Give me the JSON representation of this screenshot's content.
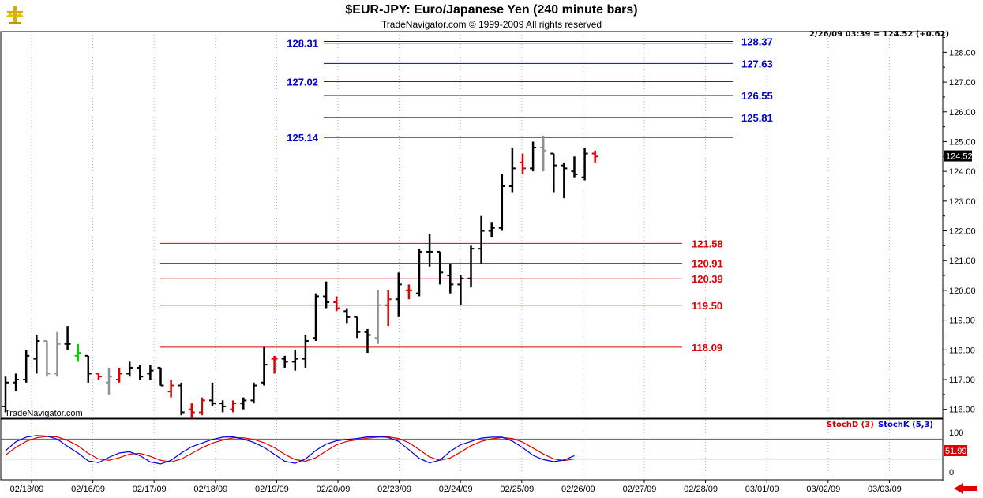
{
  "header": {
    "title": "$EUR-JPY:  Euro/Japanese Yen  (240 minute bars)",
    "subtitle": "TradeNavigator.com © 1999-2009 All rights reserved",
    "status": "2/26/09 03:39 = 124.52 (+0.62)",
    "watermark": "TradeNavigator.com"
  },
  "indicator": {
    "stoch_d_label": "StochD (3)",
    "stoch_k_label": "StochK (5,3)",
    "stoch_d_color": "#e00000",
    "stoch_k_color": "#0000e0",
    "last_value": "51.99",
    "ticks": [
      "100",
      "0"
    ]
  },
  "colors": {
    "up": "#000000",
    "down": "#e00000",
    "neutral": "#909090",
    "highlight": "#00cc00",
    "blue_levels": "#0000cc",
    "red_levels": "#e00000"
  },
  "chart_data": {
    "type": "ohlc",
    "last_price": "124.52",
    "ylim": [
      115.7,
      128.7
    ],
    "y_ticks": [
      "116.00",
      "117.00",
      "118.00",
      "119.00",
      "120.00",
      "121.00",
      "122.00",
      "123.00",
      "124.00",
      "125.00",
      "126.00",
      "127.00",
      "128.00"
    ],
    "x_ticks": [
      "02/13/09",
      "02/16/09",
      "02/17/09",
      "02/18/09",
      "02/19/09",
      "02/20/09",
      "02/23/09",
      "02/24/09",
      "02/25/09",
      "02/26/09",
      "02/27/09",
      "02/28/09",
      "03/01/09",
      "03/02/09",
      "03/03/09"
    ],
    "bars": [
      {
        "o": 116.1,
        "h": 117.1,
        "l": 115.9,
        "c": 116.9,
        "k": "up"
      },
      {
        "o": 116.9,
        "h": 117.2,
        "l": 116.6,
        "c": 117.0,
        "k": "up"
      },
      {
        "o": 117.0,
        "h": 118.0,
        "l": 116.9,
        "c": 117.8,
        "k": "up"
      },
      {
        "o": 117.7,
        "h": 118.5,
        "l": 117.2,
        "c": 118.3,
        "k": "up"
      },
      {
        "o": 118.3,
        "h": 118.3,
        "l": 117.1,
        "c": 117.2,
        "k": "neutral"
      },
      {
        "o": 117.2,
        "h": 118.6,
        "l": 117.1,
        "c": 118.2,
        "k": "neutral"
      },
      {
        "o": 118.2,
        "h": 118.8,
        "l": 118.0,
        "c": 118.2,
        "k": "up"
      },
      {
        "o": 117.8,
        "h": 118.2,
        "l": 117.6,
        "c": 117.9,
        "k": "highlight"
      },
      {
        "o": 117.8,
        "h": 117.8,
        "l": 116.9,
        "c": 117.2,
        "k": "up"
      },
      {
        "o": 117.2,
        "h": 117.2,
        "l": 117.0,
        "c": 117.1,
        "k": "down"
      },
      {
        "o": 116.9,
        "h": 117.4,
        "l": 116.5,
        "c": 117.1,
        "k": "neutral"
      },
      {
        "o": 117.0,
        "h": 117.4,
        "l": 116.9,
        "c": 117.2,
        "k": "down"
      },
      {
        "o": 117.2,
        "h": 117.6,
        "l": 117.1,
        "c": 117.4,
        "k": "up"
      },
      {
        "o": 117.4,
        "h": 117.5,
        "l": 117.0,
        "c": 117.1,
        "k": "up"
      },
      {
        "o": 117.2,
        "h": 117.5,
        "l": 117.0,
        "c": 117.3,
        "k": "up"
      },
      {
        "o": 117.4,
        "h": 117.4,
        "l": 116.8,
        "c": 116.8,
        "k": "up"
      },
      {
        "o": 116.6,
        "h": 117.0,
        "l": 116.4,
        "c": 116.8,
        "k": "down"
      },
      {
        "o": 116.8,
        "h": 116.9,
        "l": 115.8,
        "c": 115.9,
        "k": "up"
      },
      {
        "o": 116.0,
        "h": 116.2,
        "l": 115.7,
        "c": 115.9,
        "k": "down"
      },
      {
        "o": 115.9,
        "h": 116.4,
        "l": 115.8,
        "c": 116.3,
        "k": "down"
      },
      {
        "o": 116.3,
        "h": 116.9,
        "l": 116.1,
        "c": 116.2,
        "k": "up"
      },
      {
        "o": 116.2,
        "h": 116.3,
        "l": 115.9,
        "c": 116.1,
        "k": "up"
      },
      {
        "o": 116.0,
        "h": 116.3,
        "l": 115.9,
        "c": 116.2,
        "k": "down"
      },
      {
        "o": 116.2,
        "h": 116.4,
        "l": 116.0,
        "c": 116.3,
        "k": "up"
      },
      {
        "o": 116.3,
        "h": 116.9,
        "l": 116.2,
        "c": 116.8,
        "k": "up"
      },
      {
        "o": 116.9,
        "h": 118.1,
        "l": 116.8,
        "c": 117.5,
        "k": "up"
      },
      {
        "o": 117.7,
        "h": 117.8,
        "l": 117.2,
        "c": 117.7,
        "k": "down"
      },
      {
        "o": 117.7,
        "h": 117.8,
        "l": 117.4,
        "c": 117.6,
        "k": "up"
      },
      {
        "o": 117.6,
        "h": 118.0,
        "l": 117.3,
        "c": 117.7,
        "k": "up"
      },
      {
        "o": 117.7,
        "h": 118.5,
        "l": 117.4,
        "c": 118.3,
        "k": "up"
      },
      {
        "o": 118.4,
        "h": 119.9,
        "l": 118.3,
        "c": 119.8,
        "k": "up"
      },
      {
        "o": 119.8,
        "h": 120.3,
        "l": 119.4,
        "c": 119.6,
        "k": "up"
      },
      {
        "o": 119.6,
        "h": 119.8,
        "l": 119.3,
        "c": 119.4,
        "k": "down"
      },
      {
        "o": 119.3,
        "h": 119.4,
        "l": 118.9,
        "c": 119.1,
        "k": "up"
      },
      {
        "o": 119.1,
        "h": 119.1,
        "l": 118.4,
        "c": 118.6,
        "k": "up"
      },
      {
        "o": 118.6,
        "h": 118.7,
        "l": 117.9,
        "c": 118.5,
        "k": "up"
      },
      {
        "o": 118.4,
        "h": 120.0,
        "l": 118.2,
        "c": 119.5,
        "k": "neutral"
      },
      {
        "o": 119.5,
        "h": 120.0,
        "l": 118.8,
        "c": 119.7,
        "k": "down"
      },
      {
        "o": 119.7,
        "h": 120.6,
        "l": 119.1,
        "c": 120.2,
        "k": "up"
      },
      {
        "o": 120.0,
        "h": 120.2,
        "l": 119.7,
        "c": 120.0,
        "k": "down"
      },
      {
        "o": 119.9,
        "h": 121.4,
        "l": 119.8,
        "c": 121.3,
        "k": "up"
      },
      {
        "o": 121.3,
        "h": 121.9,
        "l": 120.8,
        "c": 121.3,
        "k": "up"
      },
      {
        "o": 121.3,
        "h": 121.3,
        "l": 120.2,
        "c": 120.6,
        "k": "up"
      },
      {
        "o": 120.5,
        "h": 120.9,
        "l": 119.9,
        "c": 120.2,
        "k": "up"
      },
      {
        "o": 120.2,
        "h": 120.5,
        "l": 119.5,
        "c": 120.4,
        "k": "up"
      },
      {
        "o": 120.4,
        "h": 121.5,
        "l": 120.1,
        "c": 121.4,
        "k": "up"
      },
      {
        "o": 121.4,
        "h": 122.5,
        "l": 120.9,
        "c": 122.0,
        "k": "up"
      },
      {
        "o": 122.0,
        "h": 122.3,
        "l": 121.8,
        "c": 122.1,
        "k": "up"
      },
      {
        "o": 122.1,
        "h": 123.9,
        "l": 122.0,
        "c": 123.5,
        "k": "up"
      },
      {
        "o": 123.5,
        "h": 124.8,
        "l": 123.3,
        "c": 124.1,
        "k": "up"
      },
      {
        "o": 124.3,
        "h": 124.6,
        "l": 123.9,
        "c": 124.1,
        "k": "down"
      },
      {
        "o": 124.1,
        "h": 125.0,
        "l": 124.0,
        "c": 124.8,
        "k": "up"
      },
      {
        "o": 124.8,
        "h": 125.2,
        "l": 124.0,
        "c": 124.7,
        "k": "neutral"
      },
      {
        "o": 124.6,
        "h": 124.6,
        "l": 123.3,
        "c": 124.2,
        "k": "up"
      },
      {
        "o": 124.2,
        "h": 124.3,
        "l": 123.1,
        "c": 124.1,
        "k": "up"
      },
      {
        "o": 124.0,
        "h": 124.5,
        "l": 123.8,
        "c": 123.9,
        "k": "up"
      },
      {
        "o": 123.8,
        "h": 124.8,
        "l": 123.7,
        "c": 124.6,
        "k": "up"
      },
      {
        "o": 124.6,
        "h": 124.7,
        "l": 124.3,
        "c": 124.5,
        "k": "down"
      }
    ],
    "levels_blue": [
      {
        "value": 128.31,
        "label": "128.31",
        "side": "left"
      },
      {
        "value": 128.37,
        "label": "128.37",
        "side": "right"
      },
      {
        "value": 127.63,
        "label": "127.63",
        "side": "right"
      },
      {
        "value": 127.02,
        "label": "127.02",
        "side": "left"
      },
      {
        "value": 126.55,
        "label": "126.55",
        "side": "right"
      },
      {
        "value": 125.81,
        "label": "125.81",
        "side": "right"
      },
      {
        "value": 125.14,
        "label": "125.14",
        "side": "left"
      }
    ],
    "levels_red": [
      {
        "value": 121.58,
        "label": "121.58"
      },
      {
        "value": 120.91,
        "label": "120.91"
      },
      {
        "value": 120.39,
        "label": "120.39"
      },
      {
        "value": 119.5,
        "label": "119.50"
      },
      {
        "value": 118.09,
        "label": "118.09"
      }
    ],
    "stoch_k": [
      45,
      72,
      86,
      91,
      89,
      80,
      58,
      38,
      14,
      9,
      25,
      38,
      42,
      30,
      11,
      5,
      16,
      38,
      57,
      68,
      79,
      86,
      87,
      80,
      70,
      55,
      34,
      13,
      7,
      20,
      46,
      65,
      75,
      79,
      82,
      87,
      88,
      85,
      73,
      48,
      22,
      8,
      17,
      43,
      63,
      73,
      83,
      86,
      86,
      74,
      54,
      31,
      18,
      12,
      17,
      30
    ],
    "stoch_d": [
      32,
      55,
      73,
      84,
      88,
      87,
      76,
      60,
      37,
      20,
      16,
      24,
      35,
      37,
      28,
      16,
      11,
      20,
      37,
      54,
      68,
      77,
      84,
      84,
      79,
      69,
      54,
      34,
      18,
      13,
      24,
      44,
      63,
      73,
      78,
      83,
      86,
      87,
      82,
      69,
      48,
      26,
      16,
      23,
      41,
      60,
      73,
      81,
      85,
      82,
      71,
      53,
      35,
      20,
      15,
      20
    ]
  }
}
